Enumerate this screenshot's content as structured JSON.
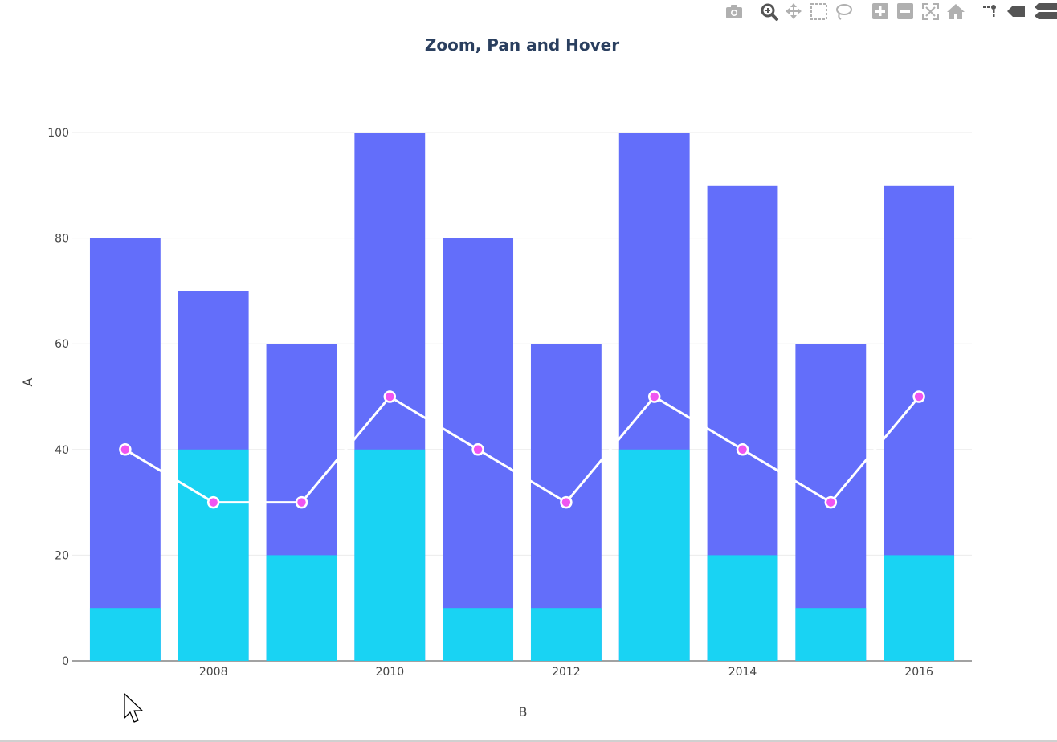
{
  "toolbar": {
    "buttons": [
      {
        "name": "camera-icon"
      },
      {
        "name": "zoom-icon"
      },
      {
        "name": "pan-icon"
      },
      {
        "name": "box-select-icon"
      },
      {
        "name": "lasso-select-icon"
      },
      {
        "name": "zoom-in-icon"
      },
      {
        "name": "zoom-out-icon"
      },
      {
        "name": "autoscale-icon"
      },
      {
        "name": "home-icon"
      },
      {
        "name": "spike-lines-icon"
      },
      {
        "name": "hover-closest-icon"
      },
      {
        "name": "hover-compare-icon"
      }
    ]
  },
  "chart_data": {
    "type": "bar",
    "title": "Zoom, Pan and Hover",
    "xlabel": "B",
    "ylabel": "A",
    "barmode": "overlay",
    "x": [
      2007,
      2008,
      2009,
      2010,
      2011,
      2012,
      2013,
      2014,
      2015,
      2016
    ],
    "x_ticks": [
      "2008",
      "2010",
      "2012",
      "2014",
      "2016"
    ],
    "y_ticks": [
      0,
      20,
      40,
      60,
      80,
      100
    ],
    "ylim": [
      0,
      100
    ],
    "grid": true,
    "series": [
      {
        "type": "bar",
        "values": [
          80,
          70,
          60,
          100,
          80,
          60,
          100,
          90,
          60,
          90
        ],
        "color": "#636efa"
      },
      {
        "type": "bar",
        "values": [
          10,
          40,
          20,
          40,
          10,
          10,
          40,
          20,
          10,
          20
        ],
        "color": "#19d3f3"
      },
      {
        "type": "line",
        "values": [
          40,
          30,
          30,
          50,
          40,
          30,
          50,
          40,
          30,
          50
        ],
        "line_color": "#ffffff",
        "marker_color": "#ef55f1"
      }
    ]
  }
}
